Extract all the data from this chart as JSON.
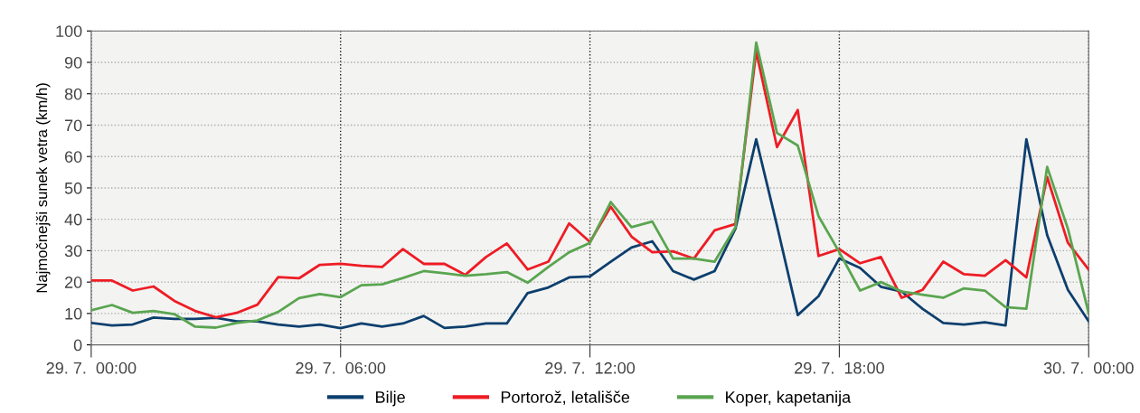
{
  "chart_data": {
    "type": "line",
    "ylabel": "Najmočnejši sunek vetra (km/h)",
    "categories": [
      "29. 7.  00:00",
      null,
      null,
      null,
      null,
      null,
      null,
      null,
      null,
      null,
      null,
      null,
      "29. 7.  06:00",
      null,
      null,
      null,
      null,
      null,
      null,
      null,
      null,
      null,
      null,
      null,
      "29. 7.  12:00",
      null,
      null,
      null,
      null,
      null,
      null,
      null,
      null,
      null,
      null,
      null,
      "29. 7.  18:00",
      null,
      null,
      null,
      null,
      null,
      null,
      null,
      null,
      null,
      null,
      null,
      "30. 7.  00:00"
    ],
    "series": [
      {
        "name": "Bilje",
        "color": "#0d3f6e",
        "values": [
          7,
          6.2,
          6.5,
          8.7,
          8.3,
          8.3,
          8.6,
          7.5,
          7.5,
          6.5,
          5.8,
          6.5,
          5.3,
          6.8,
          5.8,
          6.8,
          9.2,
          5.4,
          5.8,
          6.8,
          6.8,
          16.5,
          18.3,
          21.5,
          21.8,
          26.5,
          31,
          33,
          23.5,
          20.8,
          23.5,
          37,
          65.5,
          38,
          9.5,
          15.5,
          27.5,
          24.5,
          18.5,
          17,
          11.5,
          7,
          6.5,
          7.2,
          6.2,
          65.5,
          35,
          17.5,
          7.5
        ]
      },
      {
        "name": "Portorož, letališče",
        "color": "#ee1c25",
        "values": [
          20.5,
          20.5,
          17.3,
          18.6,
          14,
          10.8,
          8.8,
          10.2,
          12.8,
          21.6,
          21.2,
          25.5,
          25.8,
          25.2,
          24.8,
          30.5,
          25.8,
          25.8,
          22.3,
          28,
          32.3,
          24,
          26.5,
          38.7,
          32.8,
          44,
          34.5,
          29.5,
          29.8,
          27.5,
          36.5,
          38.5,
          93.5,
          63,
          74.8,
          28.3,
          30.5,
          26,
          28,
          15,
          17.5,
          26.5,
          22.5,
          22,
          27,
          21.5,
          53.5,
          32.5,
          24
        ]
      },
      {
        "name": "Koper, kapetanija",
        "color": "#5aa550",
        "values": [
          11,
          12.7,
          10.2,
          10.8,
          9.8,
          5.8,
          5.5,
          7,
          7.8,
          10.5,
          14.9,
          16.2,
          15.2,
          19,
          19.3,
          21.3,
          23.5,
          22.8,
          22,
          22.5,
          23.2,
          19.8,
          24.8,
          29.5,
          32.5,
          45.5,
          37.5,
          39.3,
          27.5,
          27.5,
          26.5,
          37.5,
          96.3,
          67.5,
          63.5,
          41,
          29.5,
          17.3,
          20,
          17,
          16,
          15,
          18,
          17.3,
          12,
          11.5,
          56.7,
          37,
          10
        ]
      }
    ],
    "ylim": [
      0,
      100
    ],
    "yticks": [
      0,
      10,
      20,
      30,
      40,
      50,
      60,
      70,
      80,
      90,
      100
    ],
    "grid": true,
    "legend": "bottom",
    "marker": "none",
    "line_style": "solid"
  }
}
